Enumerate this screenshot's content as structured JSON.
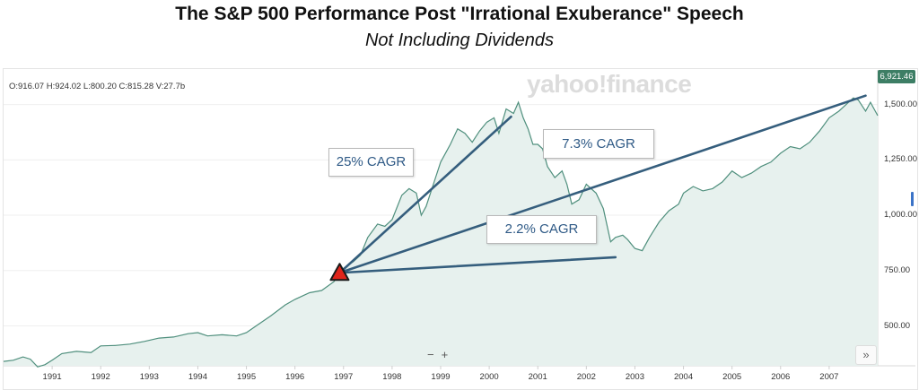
{
  "title": "The S&P 500 Performance Post \"Irrational Exuberance\" Speech",
  "subtitle": "Not Including Dividends",
  "ohlc": "O:916.07  H:924.02  L:800.20  C:815.28  V:27.7b",
  "watermark": "yahoo!finance",
  "price_badge": "6,921.46",
  "zoom": {
    "minus": "−",
    "plus": "+"
  },
  "forward_icon": "»",
  "callouts": {
    "c25": "25% CAGR",
    "c73": "7.3% CAGR",
    "c22": "2.2% CAGR"
  },
  "colors": {
    "line": "#4f8f7d",
    "area": "#e7f1ee",
    "trend": "#355e7d",
    "marker": "#e0241b"
  },
  "chart_data": {
    "type": "area",
    "title": "The S&P 500 Performance Post \"Irrational Exuberance\" Speech",
    "subtitle": "Not Including Dividends",
    "ylim": [
      320,
      1640
    ],
    "xlim": [
      1990.0,
      2008.0
    ],
    "yticks": [
      500,
      750,
      1000,
      1250,
      1500
    ],
    "ytick_labels": [
      "500.00",
      "750.00",
      "1,000.00",
      "1,250.00",
      "1,500.00"
    ],
    "xticks": [
      1991,
      1992,
      1993,
      1994,
      1995,
      1996,
      1997,
      1998,
      1999,
      2000,
      2001,
      2002,
      2003,
      2004,
      2005,
      2006,
      2007
    ],
    "xtick_labels": [
      "1991",
      "1992",
      "1993",
      "1994",
      "1995",
      "1996",
      "1997",
      "1998",
      "1999",
      "2000",
      "2001",
      "2002",
      "2003",
      "2004",
      "2005",
      "2006",
      "2007"
    ],
    "series": [
      {
        "name": "S&P 500",
        "x": [
          1990.0,
          1990.2,
          1990.4,
          1990.55,
          1990.7,
          1990.85,
          1991.0,
          1991.2,
          1991.5,
          1991.8,
          1992.0,
          1992.3,
          1992.6,
          1992.9,
          1993.2,
          1993.5,
          1993.8,
          1994.0,
          1994.2,
          1994.5,
          1994.8,
          1995.0,
          1995.2,
          1995.5,
          1995.8,
          1996.0,
          1996.3,
          1996.55,
          1996.8,
          1997.0,
          1997.2,
          1997.35,
          1997.5,
          1997.7,
          1997.85,
          1998.0,
          1998.2,
          1998.35,
          1998.5,
          1998.6,
          1998.7,
          1998.85,
          1999.0,
          1999.2,
          1999.35,
          1999.5,
          1999.65,
          1999.8,
          1999.95,
          2000.1,
          2000.2,
          2000.35,
          2000.5,
          2000.6,
          2000.7,
          2000.8,
          2000.9,
          2001.0,
          2001.1,
          2001.2,
          2001.35,
          2001.5,
          2001.6,
          2001.7,
          2001.85,
          2002.0,
          2002.2,
          2002.35,
          2002.5,
          2002.6,
          2002.75,
          2002.85,
          2003.0,
          2003.15,
          2003.3,
          2003.5,
          2003.7,
          2003.9,
          2004.0,
          2004.2,
          2004.4,
          2004.6,
          2004.8,
          2005.0,
          2005.2,
          2005.4,
          2005.6,
          2005.8,
          2006.0,
          2006.2,
          2006.4,
          2006.6,
          2006.8,
          2007.0,
          2007.2,
          2007.35,
          2007.5,
          2007.6,
          2007.75,
          2007.85,
          2007.95,
          2008.0
        ],
        "values": [
          340,
          345,
          360,
          350,
          315,
          325,
          345,
          375,
          385,
          380,
          410,
          412,
          418,
          430,
          445,
          450,
          465,
          470,
          455,
          460,
          455,
          470,
          500,
          545,
          595,
          620,
          650,
          660,
          700,
          760,
          790,
          820,
          900,
          960,
          950,
          980,
          1090,
          1120,
          1100,
          1000,
          1040,
          1140,
          1240,
          1320,
          1390,
          1370,
          1330,
          1380,
          1420,
          1440,
          1370,
          1480,
          1460,
          1510,
          1440,
          1390,
          1320,
          1320,
          1300,
          1220,
          1170,
          1200,
          1140,
          1050,
          1070,
          1140,
          1100,
          1030,
          880,
          900,
          910,
          890,
          850,
          840,
          900,
          970,
          1020,
          1050,
          1100,
          1130,
          1110,
          1120,
          1150,
          1200,
          1170,
          1190,
          1220,
          1240,
          1280,
          1310,
          1300,
          1330,
          1380,
          1440,
          1470,
          1500,
          1530,
          1520,
          1470,
          1510,
          1470,
          1450
        ]
      }
    ],
    "start_marker": {
      "x": 1996.92,
      "y": 740
    },
    "trend_lines": [
      {
        "label": "25% CAGR",
        "from": [
          1996.92,
          740
        ],
        "to": [
          2000.45,
          1445
        ]
      },
      {
        "label": "7.3% CAGR",
        "from": [
          1996.92,
          740
        ],
        "to": [
          2007.75,
          1540
        ]
      },
      {
        "label": "2.2% CAGR",
        "from": [
          1996.92,
          740
        ],
        "to": [
          2002.6,
          810
        ]
      }
    ],
    "annotations": [
      "25% CAGR",
      "7.3% CAGR",
      "2.2% CAGR"
    ]
  }
}
